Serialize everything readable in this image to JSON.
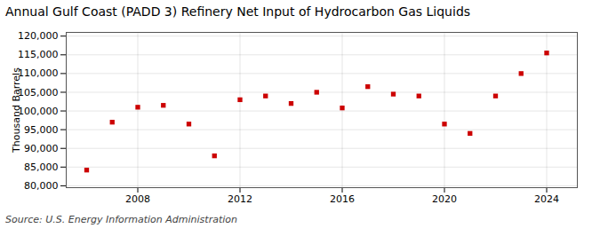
{
  "chart_data": {
    "type": "scatter",
    "title": "Annual Gulf Coast (PADD 3) Refinery Net Input of Hydrocarbon Gas Liquids",
    "ylabel": "Thousand Barrels",
    "source": "Source: U.S. Energy Information Administration",
    "x": [
      2006,
      2007,
      2008,
      2009,
      2010,
      2011,
      2012,
      2013,
      2014,
      2015,
      2016,
      2017,
      2018,
      2019,
      2020,
      2021,
      2022,
      2023,
      2024
    ],
    "values": [
      84200,
      97000,
      101000,
      101500,
      96500,
      88000,
      103000,
      104000,
      102000,
      105000,
      100800,
      106500,
      104500,
      104000,
      96500,
      94000,
      104000,
      110000,
      115500
    ],
    "color": "#CC0000",
    "marker": "square",
    "xlim": [
      2005.2,
      2025.2
    ],
    "xticks": [
      2008,
      2012,
      2016,
      2020,
      2024
    ],
    "ylim": [
      79500,
      121000
    ],
    "yticks": [
      {
        "value": 80000,
        "label": "80,000"
      },
      {
        "value": 85000,
        "label": "85,000"
      },
      {
        "value": 90000,
        "label": "90,000"
      },
      {
        "value": 95000,
        "label": "95,000"
      },
      {
        "value": 100000,
        "label": "100,000"
      },
      {
        "value": 105000,
        "label": "105,000"
      },
      {
        "value": 110000,
        "label": "110,000"
      },
      {
        "value": 115000,
        "label": "115,000"
      },
      {
        "value": 120000,
        "label": "120,000"
      }
    ],
    "grid": true
  }
}
